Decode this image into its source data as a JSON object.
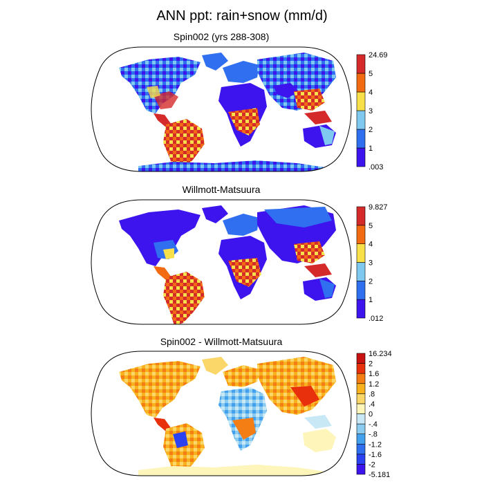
{
  "title": "ANN ppt: rain+snow (mm/d)",
  "panels": [
    {
      "title": "Spin002 (yrs 288-308)",
      "colorbar": {
        "colors": [
          "#3d14ee",
          "#2f6ff0",
          "#7fc8ef",
          "#f7e04a",
          "#f26b12",
          "#d42a2a"
        ],
        "labels": [
          ".003",
          "1",
          "2",
          "3",
          "4",
          "5",
          "24.69"
        ]
      }
    },
    {
      "title": "Willmott-Matsuura",
      "colorbar": {
        "colors": [
          "#3d14ee",
          "#2f6ff0",
          "#7fc8ef",
          "#f7e04a",
          "#f26b12",
          "#d42a2a"
        ],
        "labels": [
          ".012",
          "1",
          "2",
          "3",
          "4",
          "5",
          "9.827"
        ]
      }
    },
    {
      "title": "Spin002 - Willmott-Matsuura",
      "colorbar": {
        "colors": [
          "#3d14ee",
          "#2a42f2",
          "#2f6ff0",
          "#43a0ee",
          "#8ccbf0",
          "#c9e8f6",
          "#fdf5ba",
          "#fbd76a",
          "#f9b21d",
          "#f57e14",
          "#e8310c",
          "#c81212"
        ],
        "labels": [
          "-5.181",
          "-2",
          "-1.6",
          "-1.2",
          "-.8",
          "-.4",
          "0",
          ".4",
          ".8",
          "1.2",
          "1.6",
          "2",
          "16.234"
        ]
      }
    }
  ]
}
